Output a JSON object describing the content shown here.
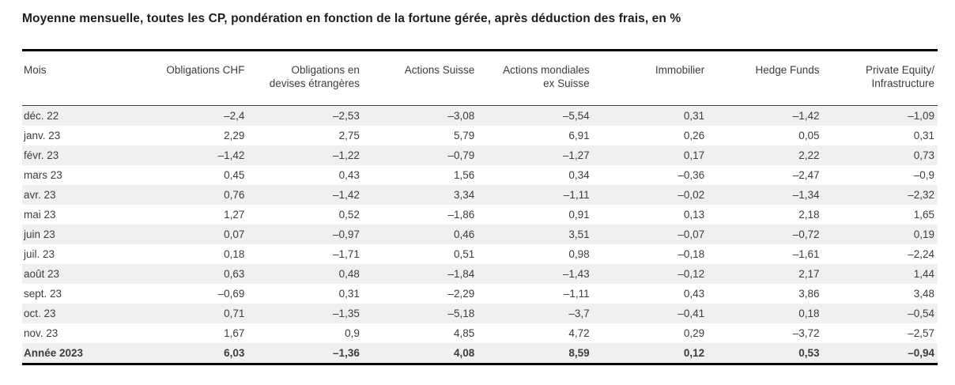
{
  "page": {
    "title": "Moyenne mensuelle, toutes les CP, pondération en fonction de la fortune gérée, après déduction des frais, en %"
  },
  "colors": {
    "title_text": "#1d1d1b",
    "body_text": "#3c3c3c",
    "row_stripe": "#f0f0f0",
    "rule": "#000000"
  },
  "chart_data": {
    "type": "table",
    "title": "Moyenne mensuelle, toutes les CP, pondération en fonction de la fortune gérée, après déduction des frais, en %",
    "columns": [
      "Mois",
      "Obligations CHF",
      "Obligations en\ndevises étrangères",
      "Actions Suisse",
      "Actions mondiales\nex Suisse",
      "Immobilier",
      "Hedge Funds",
      "Private Equity/\nInfrastructure"
    ],
    "rows": [
      [
        "déc. 22",
        "–2,4",
        "–2,53",
        "–3,08",
        "–5,54",
        "0,31",
        "–1,42",
        "–1,09"
      ],
      [
        "janv. 23",
        "2,29",
        "2,75",
        "5,79",
        "6,91",
        "0,26",
        "0,05",
        "0,31"
      ],
      [
        "févr. 23",
        "–1,42",
        "–1,22",
        "–0,79",
        "–1,27",
        "0,17",
        "2,22",
        "0,73"
      ],
      [
        "mars 23",
        "0,45",
        "0,43",
        "1,56",
        "0,34",
        "–0,36",
        "–2,47",
        "–0,9"
      ],
      [
        "avr. 23",
        "0,76",
        "–1,42",
        "3,34",
        "–1,11",
        "–0,02",
        "–1,34",
        "–2,32"
      ],
      [
        "mai 23",
        "1,27",
        "0,52",
        "–1,86",
        "0,91",
        "0,13",
        "2,18",
        "1,65"
      ],
      [
        "juin 23",
        "0,07",
        "–0,97",
        "0,46",
        "3,51",
        "–0,07",
        "–0,72",
        "0,19"
      ],
      [
        "juil. 23",
        "0,18",
        "–1,71",
        "0,51",
        "0,98",
        "–0,18",
        "–1,61",
        "–2,24"
      ],
      [
        "août 23",
        "0,63",
        "0,48",
        "–1,84",
        "–1,43",
        "–0,12",
        "2,17",
        "1,44"
      ],
      [
        "sept. 23",
        "–0,69",
        "0,31",
        "–2,29",
        "–1,11",
        "0,43",
        "3,86",
        "3,48"
      ],
      [
        "oct. 23",
        "0,71",
        "–1,35",
        "–5,18",
        "–3,7",
        "–0,41",
        "0,18",
        "–0,54"
      ],
      [
        "nov. 23",
        "1,67",
        "0,9",
        "4,85",
        "4,72",
        "0,29",
        "–3,72",
        "–2,57"
      ]
    ],
    "total_row": [
      "Année 2023",
      "6,03",
      "–1,36",
      "4,08",
      "8,59",
      "0,12",
      "0,53",
      "–0,94"
    ]
  }
}
